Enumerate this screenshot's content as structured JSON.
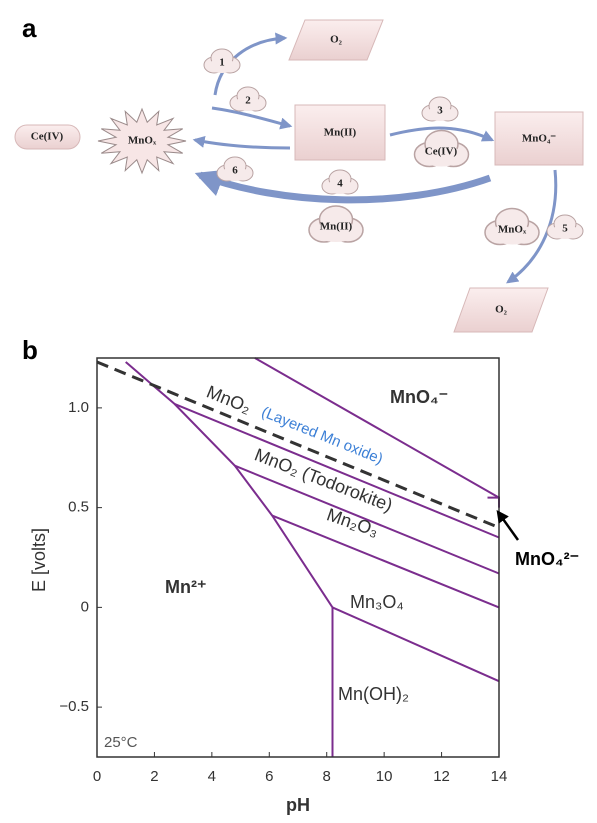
{
  "panel_a": {
    "label": "a",
    "nodes": {
      "ce_iv": "Ce(IV)",
      "mnox": "MnOₓ",
      "mn_ii": "Mn(II)",
      "mno4": "MnO₄⁻",
      "o2_top": "O₂",
      "o2_bottom": "O₂"
    },
    "steps": [
      "1",
      "2",
      "3",
      "4",
      "5",
      "6"
    ],
    "clouds": {
      "ce_iv": "Ce(IV)",
      "mn_ii": "Mn(II)",
      "mnox": "MnOₓ"
    }
  },
  "panel_b": {
    "label": "b",
    "x_label": "pH",
    "y_label": "E [volts]",
    "temperature": "25°C",
    "xlim": [
      0,
      14
    ],
    "ylim": [
      -0.75,
      1.25
    ],
    "xticks": [
      0,
      2,
      4,
      6,
      8,
      10,
      12,
      14
    ],
    "yticks": [
      {
        "value": -0.5,
        "label": "−0.5"
      },
      0,
      0.5,
      {
        "value": 1,
        "label": "1.0"
      }
    ],
    "regions": {
      "mno4": "MnO₄⁻",
      "mno2": "MnO₂",
      "layered": "(Layered Mn oxide)",
      "todorokite": "MnO₂ (Todorokite)",
      "mn2o3": "Mn₂O₃",
      "mn3o4": "Mn₃O₄",
      "mnoh2": "Mn(OH)₂",
      "mn2": "Mn²⁺",
      "mno4_2": "MnO₄²⁻"
    },
    "line_color": "#7b2d8e",
    "boundaries": [
      {
        "x": [
          1,
          2.7,
          4.8,
          6.1,
          8.2,
          8.2
        ],
        "y": [
          1.23,
          1.02,
          0.71,
          0.46,
          0.0,
          -0.75
        ]
      },
      {
        "x": [
          2.7,
          14
        ],
        "y": [
          1.02,
          0.35
        ]
      },
      {
        "x": [
          4.8,
          14
        ],
        "y": [
          0.71,
          0.17
        ]
      },
      {
        "x": [
          6.1,
          14
        ],
        "y": [
          0.46,
          0.0
        ]
      },
      {
        "x": [
          8.2,
          14
        ],
        "y": [
          0.0,
          -0.37
        ]
      },
      {
        "x": [
          5.5,
          14
        ],
        "y": [
          1.25,
          0.55
        ]
      },
      {
        "x": [
          13.6,
          14,
          14
        ],
        "y": [
          0.55,
          0.55,
          0.5
        ]
      }
    ],
    "dashed_line": {
      "x": [
        0,
        14
      ],
      "y": [
        1.23,
        0.4
      ]
    }
  }
}
